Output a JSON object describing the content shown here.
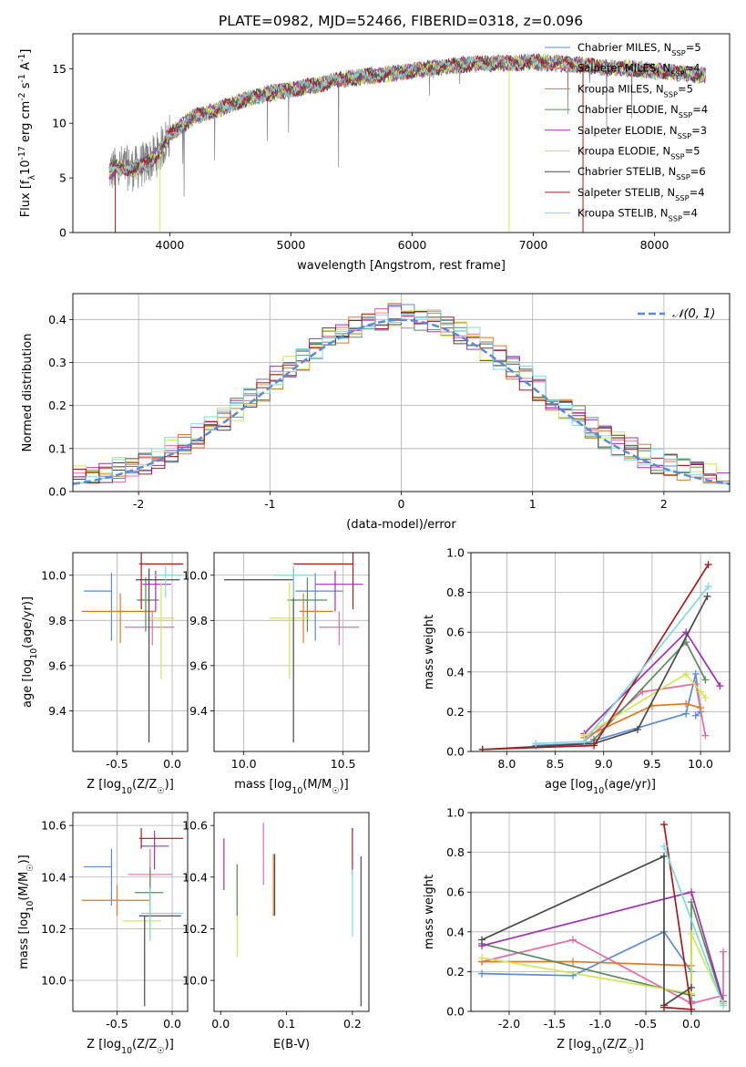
{
  "figure": {
    "title": "PLATE=0982, MJD=52466, FIBERID=0318, z=0.096"
  },
  "colors": {
    "Chabrier MILES": "#5b8bd6",
    "Salpeter MILES": "#e46ca5",
    "Kroupa MILES": "#e07820",
    "Chabrier ELODIE": "#5b8b5b",
    "Salpeter ELODIE": "#a030b0",
    "Kroupa ELODIE": "#d2e55a",
    "Chabrier STELIB": "#4a4a4a",
    "Salpeter STELIB": "#a51c1c",
    "Kroupa STELIB": "#7fd8e0",
    "data": "#808080",
    "gaussian": "#5b8bd6"
  },
  "chart_data": [
    {
      "id": "spectrum",
      "type": "line",
      "xlabel": "wavelength [Angstrom, rest frame]",
      "ylabel": "Flux [f_λ10^-17 erg cm^-2 s^-1 A^-1]",
      "xlim": [
        3200,
        8620
      ],
      "ylim": [
        0,
        18.2
      ],
      "xticks": [
        4000,
        5000,
        6000,
        7000,
        8000
      ],
      "yticks": [
        0,
        5,
        10,
        15
      ],
      "grid": false,
      "legend_position": "right",
      "legend": [
        "Chabrier MILES, N_SSP=5",
        "Salpeter MILES, N_SSP=4",
        "Kroupa MILES, N_SSP=5",
        "Chabrier ELODIE, N_SSP=4",
        "Salpeter ELODIE, N_SSP=3",
        "Kroupa ELODIE, N_SSP=5",
        "Chabrier STELIB, N_SSP=6",
        "Salpeter STELIB, N_SSP=4",
        "Kroupa STELIB, N_SSP=4"
      ],
      "continuum": {
        "x": [
          3500,
          3600,
          3700,
          3800,
          3900,
          4000,
          4200,
          4400,
          4600,
          4800,
          5000,
          5200,
          5400,
          5600,
          5800,
          6000,
          6200,
          6400,
          6600,
          6800,
          7000,
          7200,
          7400,
          7600,
          7800,
          8000,
          8200,
          8400
        ],
        "y": [
          5.6,
          6.0,
          5.8,
          6.3,
          7.2,
          9.0,
          10.6,
          11.3,
          12.1,
          12.7,
          13.1,
          13.5,
          14.0,
          14.3,
          14.5,
          14.8,
          15.1,
          15.3,
          15.5,
          15.5,
          15.6,
          15.5,
          15.3,
          15.1,
          15.0,
          14.8,
          14.6,
          14.4
        ]
      }
    },
    {
      "id": "residuals",
      "type": "bar",
      "xlabel": "(data-model)/error",
      "ylabel": "Normed distribution",
      "xlim": [
        -2.5,
        2.5
      ],
      "ylim": [
        0,
        0.46
      ],
      "xticks": [
        -2,
        -1,
        0,
        1,
        2
      ],
      "yticks": [
        0.0,
        0.1,
        0.2,
        0.3,
        0.4
      ],
      "grid": true,
      "legend": [
        "𝒩(0, 1)"
      ],
      "legend_position": "top-right",
      "bin_width": 0.1,
      "gaussian_peak": 0.399
    },
    {
      "id": "age-vs-Z",
      "type": "scatter",
      "xlabel": "Z [log10(Z/Z☉)]",
      "ylabel": "age  [log10(age/yr)]",
      "xlim": [
        -0.9,
        0.14
      ],
      "ylim": [
        9.22,
        10.1
      ],
      "xticks": [
        -0.5,
        0.0
      ],
      "yticks": [
        9.4,
        9.6,
        9.8,
        10.0
      ],
      "grid": true,
      "points": [
        {
          "model": "Chabrier MILES",
          "x": -0.55,
          "xerr": [
            0.25,
            0.0
          ],
          "y": 9.93,
          "yerr": [
            0.22,
            0.08
          ]
        },
        {
          "model": "Salpeter MILES",
          "x": -0.18,
          "xerr": [
            0.25,
            0.2
          ],
          "y": 9.77,
          "yerr": [
            0.08,
            0.07
          ]
        },
        {
          "model": "Kroupa MILES",
          "x": -0.47,
          "xerr": [
            0.35,
            0.32
          ],
          "y": 9.84,
          "yerr": [
            0.14,
            0.08
          ]
        },
        {
          "model": "Chabrier ELODIE",
          "x": -0.24,
          "xerr": [
            0.08,
            0.12
          ],
          "y": 9.89,
          "yerr": [
            0.14,
            0.1
          ]
        },
        {
          "model": "Salpeter ELODIE",
          "x": -0.15,
          "xerr": [
            0.12,
            0.14
          ],
          "y": 9.96,
          "yerr": [
            0.12,
            0.06
          ]
        },
        {
          "model": "Kroupa ELODIE",
          "x": -0.1,
          "xerr": [
            0.13,
            0.12
          ],
          "y": 9.81,
          "yerr": [
            0.27,
            0.16
          ]
        },
        {
          "model": "Chabrier STELIB",
          "x": -0.21,
          "xerr": [
            0.12,
            0.28
          ],
          "y": 9.98,
          "yerr": [
            0.72,
            0.05
          ]
        },
        {
          "model": "Salpeter STELIB",
          "x": -0.28,
          "xerr": [
            0.02,
            0.38
          ],
          "y": 10.05,
          "yerr": [
            0.2,
            0.05
          ]
        },
        {
          "model": "Kroupa STELIB",
          "x": -0.06,
          "xerr": [
            0.1,
            0.15
          ],
          "y": 10.0,
          "yerr": [
            0.1,
            0.04
          ]
        }
      ]
    },
    {
      "id": "age-vs-mass",
      "type": "scatter",
      "xlabel": "mass [log10(M/M☉)]",
      "ylabel": "",
      "xlim": [
        9.85,
        10.63
      ],
      "ylim": [
        9.22,
        10.1
      ],
      "xticks": [
        10.0,
        10.5
      ],
      "yticks": [
        9.4,
        9.6,
        9.8,
        10.0
      ],
      "grid": true,
      "points": [
        {
          "model": "Chabrier MILES",
          "x": 10.36,
          "xerr": [
            0.1,
            0.14
          ],
          "y": 9.93,
          "yerr": [
            0.22,
            0.08
          ]
        },
        {
          "model": "Salpeter MILES",
          "x": 10.48,
          "xerr": [
            0.1,
            0.1
          ],
          "y": 9.77,
          "yerr": [
            0.08,
            0.07
          ]
        },
        {
          "model": "Kroupa MILES",
          "x": 10.3,
          "xerr": [
            0.02,
            0.15
          ],
          "y": 9.84,
          "yerr": [
            0.14,
            0.08
          ]
        },
        {
          "model": "Chabrier ELODIE",
          "x": 10.32,
          "xerr": [
            0.1,
            0.1
          ],
          "y": 9.89,
          "yerr": [
            0.14,
            0.1
          ]
        },
        {
          "model": "Salpeter ELODIE",
          "x": 10.46,
          "xerr": [
            0.1,
            0.14
          ],
          "y": 9.96,
          "yerr": [
            0.12,
            0.06
          ]
        },
        {
          "model": "Kroupa ELODIE",
          "x": 10.23,
          "xerr": [
            0.1,
            0.1
          ],
          "y": 9.81,
          "yerr": [
            0.27,
            0.16
          ]
        },
        {
          "model": "Chabrier STELIB",
          "x": 10.25,
          "xerr": [
            0.35,
            0.0
          ],
          "y": 9.98,
          "yerr": [
            0.72,
            0.05
          ]
        },
        {
          "model": "Salpeter STELIB",
          "x": 10.55,
          "xerr": [
            0.3,
            0.0
          ],
          "y": 10.05,
          "yerr": [
            0.2,
            0.05
          ]
        },
        {
          "model": "Kroupa STELIB",
          "x": 10.25,
          "xerr": [
            0.1,
            0.1
          ],
          "y": 10.0,
          "yerr": [
            0.1,
            0.04
          ]
        }
      ]
    },
    {
      "id": "mass-weight-vs-age",
      "type": "line",
      "xlabel": "age  [log10(age/yr)]",
      "ylabel": "mass weight",
      "xlim": [
        7.63,
        10.3
      ],
      "ylim": [
        0,
        1.0
      ],
      "xticks": [
        8.0,
        8.5,
        9.0,
        9.5,
        10.0
      ],
      "yticks": [
        0.0,
        0.2,
        0.4,
        0.6,
        0.8,
        1.0
      ],
      "grid": true,
      "series": [
        {
          "model": "Chabrier MILES",
          "x": [
            8.3,
            8.8,
            9.85,
            9.95,
            10.0,
            9.95
          ],
          "y": [
            0.03,
            0.04,
            0.19,
            0.39,
            0.2,
            0.18
          ]
        },
        {
          "model": "Salpeter MILES",
          "x": [
            8.8,
            9.4,
            9.95,
            10.05
          ],
          "y": [
            0.05,
            0.3,
            0.34,
            0.08
          ]
        },
        {
          "model": "Kroupa MILES",
          "x": [
            8.8,
            9.5,
            9.85,
            10.0
          ],
          "y": [
            0.07,
            0.23,
            0.24,
            0.22
          ]
        },
        {
          "model": "Chabrier ELODIE",
          "x": [
            8.9,
            9.85,
            10.05
          ],
          "y": [
            0.06,
            0.55,
            0.36
          ]
        },
        {
          "model": "Salpeter ELODIE",
          "x": [
            8.8,
            9.85,
            10.2
          ],
          "y": [
            0.09,
            0.6,
            0.33
          ]
        },
        {
          "model": "Kroupa ELODIE",
          "x": [
            8.8,
            9.85,
            10.0,
            10.05
          ],
          "y": [
            0.08,
            0.39,
            0.3,
            0.27
          ]
        },
        {
          "model": "Chabrier STELIB",
          "x": [
            7.75,
            8.9,
            9.35,
            10.07
          ],
          "y": [
            0.01,
            0.04,
            0.11,
            0.78
          ]
        },
        {
          "model": "Salpeter STELIB",
          "x": [
            7.75,
            8.9,
            10.08
          ],
          "y": [
            0.01,
            0.03,
            0.94
          ]
        },
        {
          "model": "Kroupa STELIB",
          "x": [
            8.3,
            8.8,
            10.08
          ],
          "y": [
            0.04,
            0.05,
            0.83
          ]
        }
      ]
    },
    {
      "id": "mass-vs-Z",
      "type": "scatter",
      "xlabel": "Z [log10(Z/Z☉)]",
      "ylabel": "mass [log10(M/M☉)]",
      "xlim": [
        -0.9,
        0.14
      ],
      "ylim": [
        9.88,
        10.65
      ],
      "xticks": [
        -0.5,
        0.0
      ],
      "yticks": [
        10.0,
        10.2,
        10.4,
        10.6
      ],
      "grid": true,
      "points": [
        {
          "model": "Chabrier MILES",
          "x": -0.55,
          "xerr": [
            0.25,
            0.0
          ],
          "y": 10.44,
          "yerr": [
            0.15,
            0.07
          ]
        },
        {
          "model": "Salpeter MILES",
          "x": -0.2,
          "xerr": [
            0.2,
            0.2
          ],
          "y": 10.41,
          "yerr": [
            0.1,
            0.1
          ]
        },
        {
          "model": "Kroupa MILES",
          "x": -0.5,
          "xerr": [
            0.32,
            0.3
          ],
          "y": 10.31,
          "yerr": [
            0.06,
            0.06
          ]
        },
        {
          "model": "Chabrier ELODIE",
          "x": -0.2,
          "xerr": [
            0.14,
            0.12
          ],
          "y": 10.34,
          "yerr": [
            0.1,
            0.1
          ]
        },
        {
          "model": "Salpeter ELODIE",
          "x": -0.16,
          "xerr": [
            0.12,
            0.13
          ],
          "y": 10.52,
          "yerr": [
            0.09,
            0.06
          ]
        },
        {
          "model": "Kroupa ELODIE",
          "x": -0.2,
          "xerr": [
            0.25,
            0.1
          ],
          "y": 10.23,
          "yerr": [
            0.08,
            0.08
          ]
        },
        {
          "model": "Chabrier STELIB",
          "x": -0.25,
          "xerr": [
            0.05,
            0.33
          ],
          "y": 10.25,
          "yerr": [
            0.35,
            0.0
          ]
        },
        {
          "model": "Salpeter STELIB",
          "x": -0.28,
          "xerr": [
            0.02,
            0.38
          ],
          "y": 10.55,
          "yerr": [
            0.04,
            0.04
          ]
        },
        {
          "model": "Kroupa STELIB",
          "x": -0.2,
          "xerr": [
            0.08,
            0.3
          ],
          "y": 10.26,
          "yerr": [
            0.1,
            0.1
          ]
        }
      ]
    },
    {
      "id": "mass-vs-EBV",
      "type": "scatter",
      "xlabel": "E(B-V)",
      "ylabel": "",
      "xlim": [
        -0.01,
        0.225
      ],
      "ylim": [
        9.88,
        10.65
      ],
      "xticks": [
        0.0,
        0.1,
        0.2
      ],
      "yticks": [
        10.0,
        10.2,
        10.4,
        10.6
      ],
      "grid": false,
      "points": [
        {
          "model": "Salpeter ELODIE",
          "x": 0.005,
          "y": 10.45,
          "yerr": [
            0.1,
            0.1
          ]
        },
        {
          "model": "Kroupa ELODIE",
          "x": 0.025,
          "y": 10.27,
          "yerr": [
            0.18,
            0.18
          ]
        },
        {
          "model": "Chabrier ELODIE",
          "x": 0.025,
          "y": 10.35,
          "yerr": [
            0.1,
            0.1
          ]
        },
        {
          "model": "Salpeter MILES",
          "x": 0.065,
          "y": 10.49,
          "yerr": [
            0.12,
            0.12
          ]
        },
        {
          "model": "Kroupa MILES",
          "x": 0.08,
          "y": 10.37,
          "yerr": [
            0.12,
            0.12
          ]
        },
        {
          "model": "Chabrier STELIB",
          "x": 0.082,
          "y": 10.37,
          "yerr": [
            0.12,
            0.12
          ]
        },
        {
          "model": "Salpeter STELIB",
          "x": 0.2,
          "y": 10.5,
          "yerr": [
            0.09,
            0.09
          ]
        },
        {
          "model": "Kroupa STELIB",
          "x": 0.2,
          "y": 10.3,
          "yerr": [
            0.13,
            0.13
          ]
        },
        {
          "model": "Chabrier STELIB",
          "x": 0.213,
          "y": 10.19,
          "yerr": [
            0.29,
            0.29
          ]
        }
      ]
    },
    {
      "id": "mass-weight-vs-Z",
      "type": "line",
      "xlabel": "Z [log10(Z/Z☉)]",
      "ylabel": "mass weight",
      "xlim": [
        -2.42,
        0.42
      ],
      "ylim": [
        0,
        1.0
      ],
      "xticks": [
        -2.0,
        -1.5,
        -1.0,
        -0.5,
        0.0
      ],
      "yticks": [
        0.0,
        0.2,
        0.4,
        0.6,
        0.8,
        1.0
      ],
      "grid": true,
      "series": [
        {
          "model": "Chabrier MILES",
          "x": [
            -2.3,
            -1.3,
            -0.3,
            0.0,
            0.0
          ],
          "y": [
            0.19,
            0.18,
            0.4,
            0.2,
            0.05
          ]
        },
        {
          "model": "Salpeter MILES",
          "x": [
            -2.3,
            -1.3,
            0.0,
            0.35,
            0.35
          ],
          "y": [
            0.25,
            0.36,
            0.04,
            0.08,
            0.3
          ]
        },
        {
          "model": "Kroupa MILES",
          "x": [
            -2.3,
            -1.3,
            0.0
          ],
          "y": [
            0.25,
            0.25,
            0.23
          ]
        },
        {
          "model": "Chabrier ELODIE",
          "x": [
            -2.3,
            0.0,
            0.0,
            0.35
          ],
          "y": [
            0.34,
            0.08,
            0.55,
            0.04
          ]
        },
        {
          "model": "Salpeter ELODIE",
          "x": [
            -2.3,
            0.0,
            0.35
          ],
          "y": [
            0.33,
            0.6,
            0.05
          ]
        },
        {
          "model": "Kroupa ELODIE",
          "x": [
            -2.3,
            0.0,
            0.0,
            0.35
          ],
          "y": [
            0.27,
            0.09,
            0.39,
            0.04
          ]
        },
        {
          "model": "Chabrier STELIB",
          "x": [
            -2.3,
            -0.3,
            -0.3,
            0.0
          ],
          "y": [
            0.36,
            0.78,
            0.03,
            0.12
          ]
        },
        {
          "model": "Salpeter STELIB",
          "x": [
            -0.3,
            0.0,
            -0.3
          ],
          "y": [
            0.94,
            0.01,
            0.02
          ]
        },
        {
          "model": "Kroupa STELIB",
          "x": [
            -0.3,
            0.35
          ],
          "y": [
            0.83,
            0.03
          ]
        }
      ]
    }
  ]
}
